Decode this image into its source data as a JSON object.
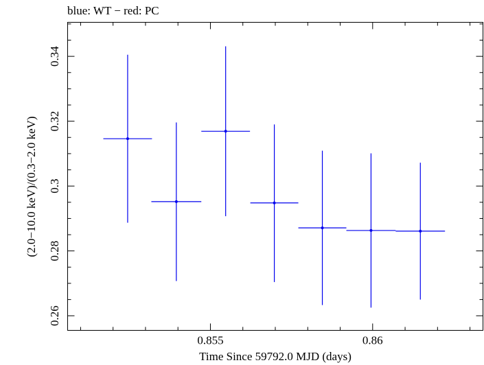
{
  "chart_data": {
    "type": "scatter",
    "title": "blue: WT − red: PC",
    "xlabel": "Time Since 59792.0 MJD (days)",
    "ylabel": "(2.0−10.0 keV)/(0.3−2.0 keV)",
    "xlim": [
      0.8506,
      0.8634
    ],
    "ylim": [
      0.2555,
      0.3505
    ],
    "xticks": [
      {
        "value": 0.855,
        "label": "0.855"
      },
      {
        "value": 0.86,
        "label": "0.86"
      }
    ],
    "yticks": [
      {
        "value": 0.26,
        "label": "0.26"
      },
      {
        "value": 0.28,
        "label": "0.28"
      },
      {
        "value": 0.3,
        "label": "0.3"
      },
      {
        "value": 0.32,
        "label": "0.32"
      },
      {
        "value": 0.34,
        "label": "0.34"
      }
    ],
    "grid": false,
    "series": [
      {
        "color": "#0000ee",
        "points": [
          {
            "x": 0.85245,
            "xerr": 0.00075,
            "y": 0.3146,
            "yerr_low": 0.0259,
            "yerr_high": 0.0259
          },
          {
            "x": 0.85395,
            "xerr": 0.00077,
            "y": 0.2952,
            "yerr_low": 0.0245,
            "yerr_high": 0.0244
          },
          {
            "x": 0.85547,
            "xerr": 0.00075,
            "y": 0.3169,
            "yerr_low": 0.0262,
            "yerr_high": 0.0262
          },
          {
            "x": 0.85697,
            "xerr": 0.00074,
            "y": 0.2948,
            "yerr_low": 0.0244,
            "yerr_high": 0.0242
          },
          {
            "x": 0.85845,
            "xerr": 0.00074,
            "y": 0.2871,
            "yerr_low": 0.0238,
            "yerr_high": 0.0238
          },
          {
            "x": 0.85995,
            "xerr": 0.00076,
            "y": 0.2863,
            "yerr_low": 0.0238,
            "yerr_high": 0.0238
          },
          {
            "x": 0.86147,
            "xerr": 0.00076,
            "y": 0.2861,
            "yerr_low": 0.0211,
            "yerr_high": 0.0211
          }
        ]
      }
    ]
  }
}
